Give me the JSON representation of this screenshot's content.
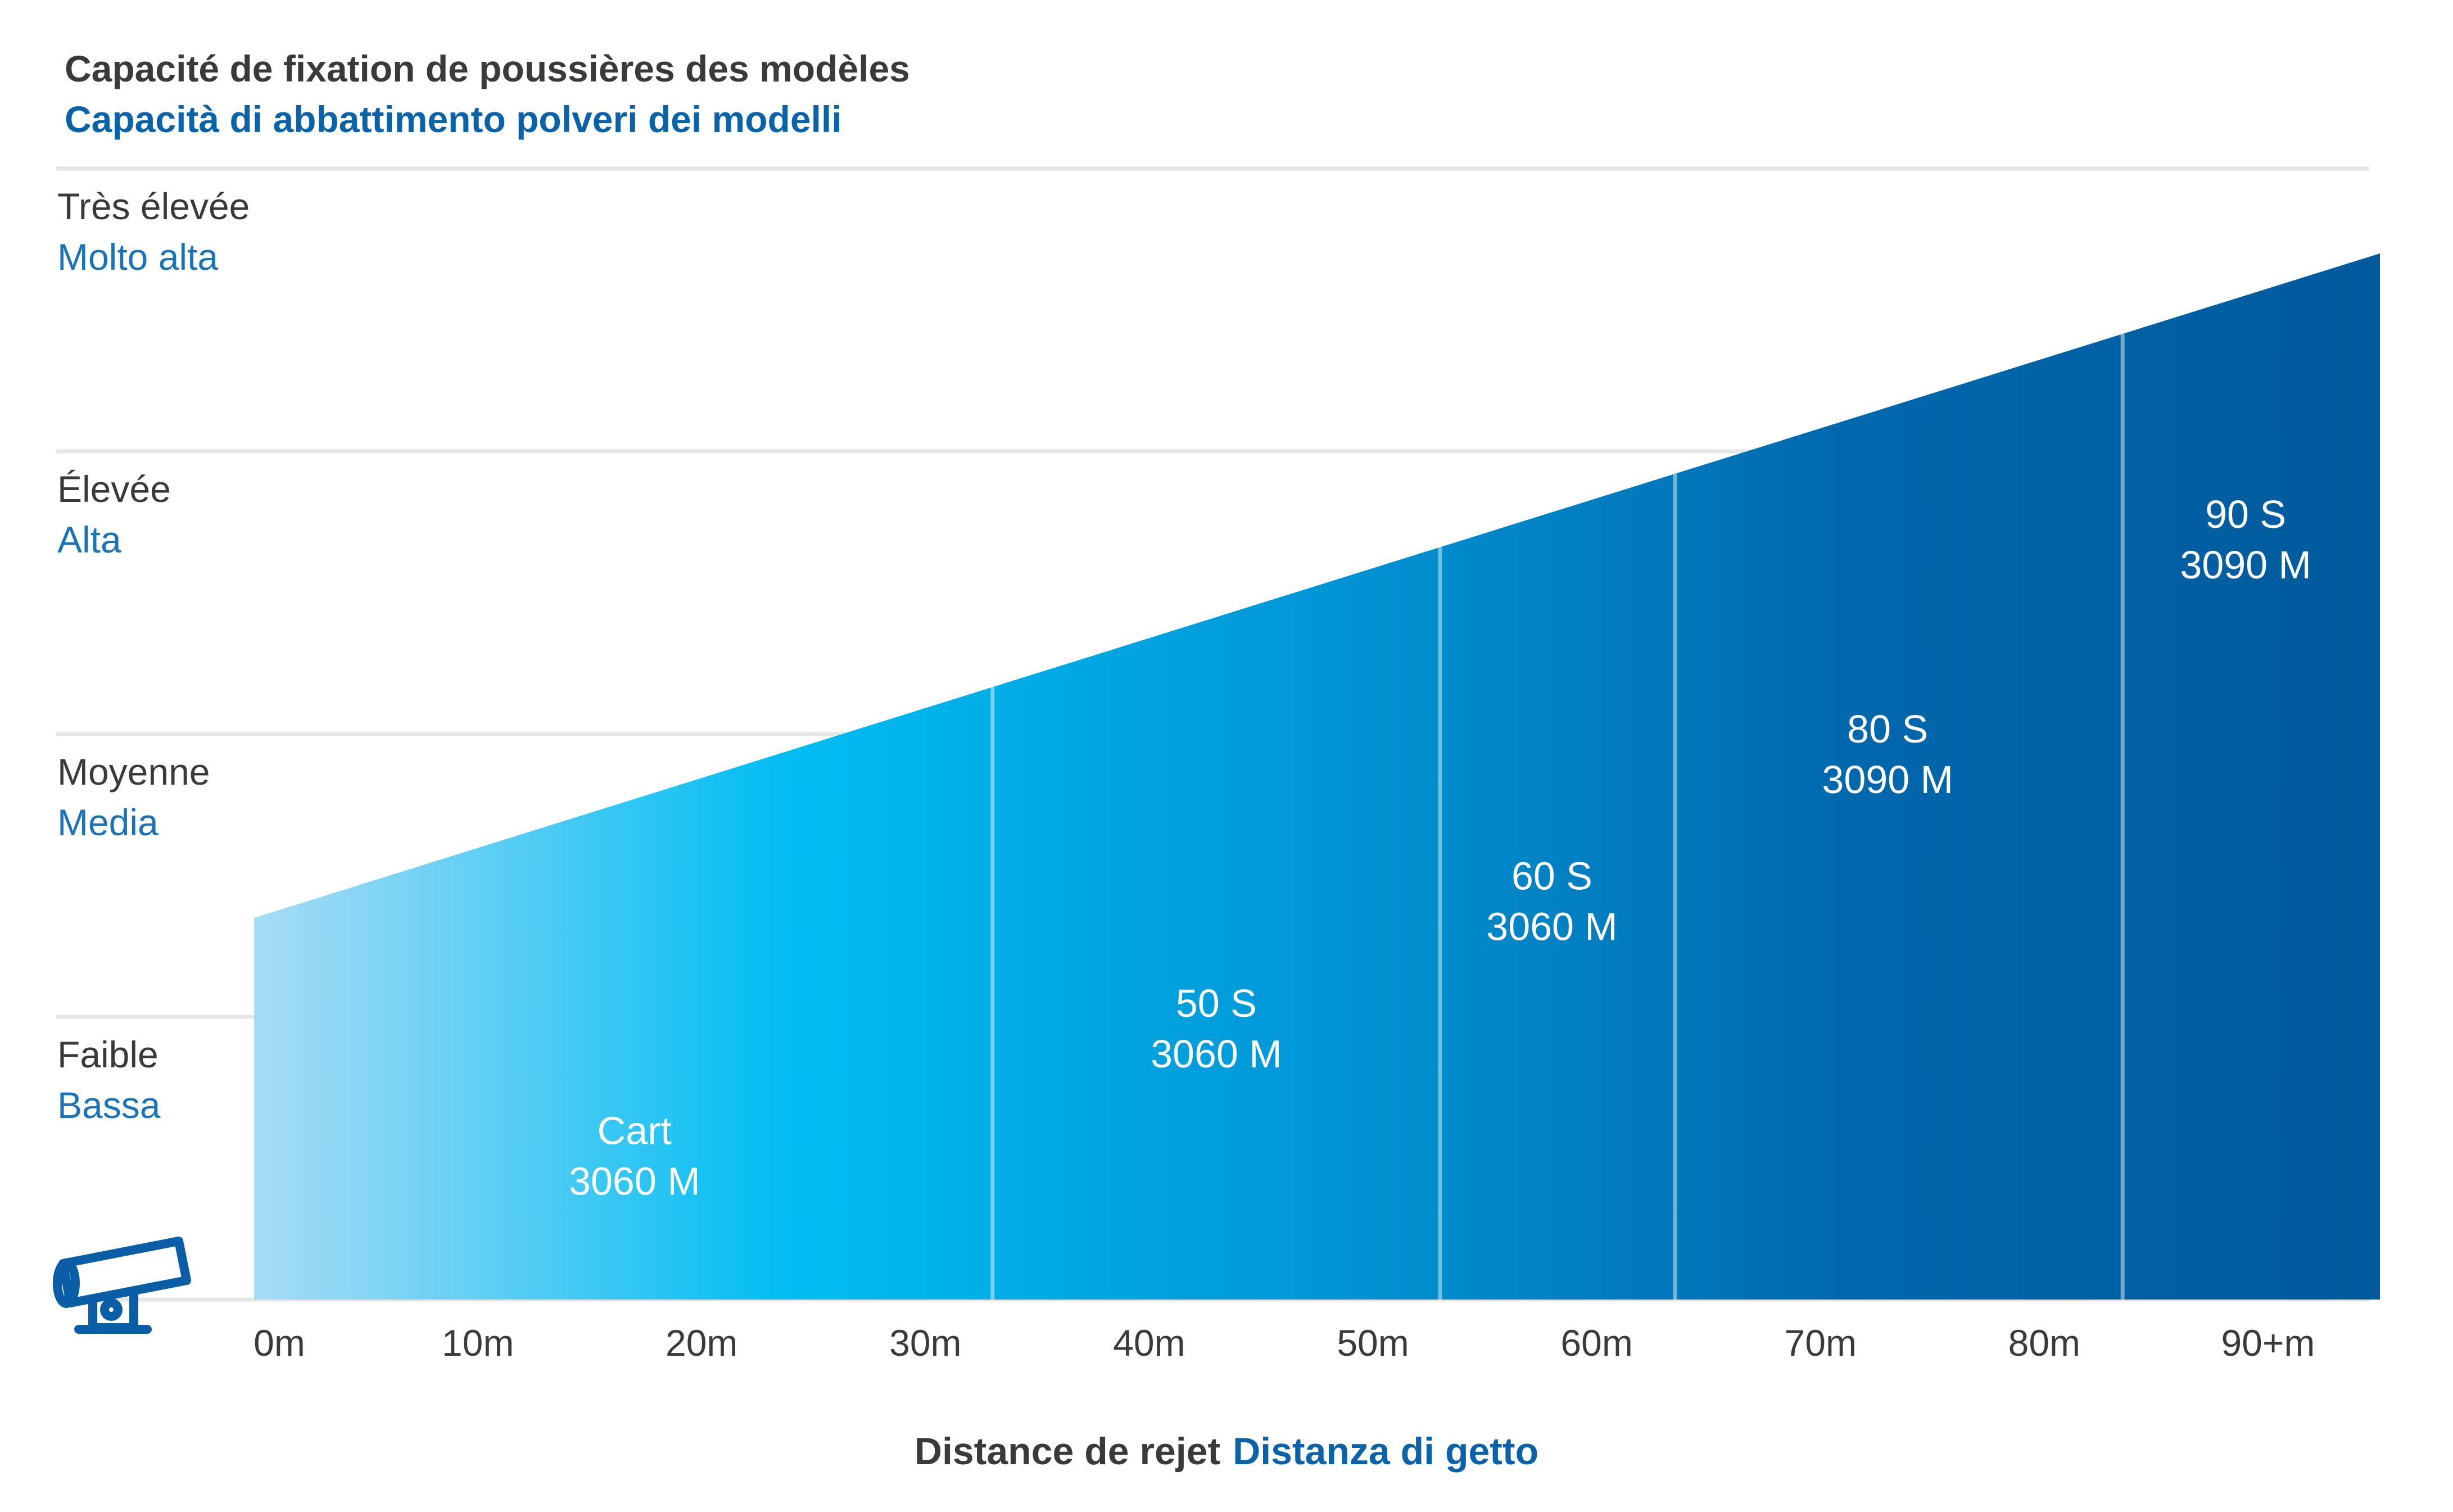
{
  "chart_data": {
    "type": "area",
    "title": "Capacité de fixation de poussières des modèles",
    "subtitle": "Capacità di abbattimento polveri dei modelli",
    "xlabel": {
      "fr": "Distance de rejet",
      "it": "Distanza di getto"
    },
    "x_ticks": [
      "0m",
      "10m",
      "20m",
      "30m",
      "40m",
      "50m",
      "60m",
      "70m",
      "80m",
      "90+m"
    ],
    "y_levels": [
      {
        "fr": "Faible",
        "it": "Bassa"
      },
      {
        "fr": "Moyenne",
        "it": "Media"
      },
      {
        "fr": "Élevée",
        "it": "Alta"
      },
      {
        "fr": "Très élevée",
        "it": "Molto alta"
      }
    ],
    "ylim": [
      0,
      4
    ],
    "xlim": [
      0,
      95
    ],
    "line_start": {
      "x": 0,
      "y": 1.35
    },
    "line_end": {
      "x": 95,
      "y": 3.7
    },
    "segments": [
      {
        "lines": [
          "Cart",
          "3060 M"
        ],
        "from": 0,
        "to": 33,
        "label_x": 17,
        "label_y": 0.55
      },
      {
        "lines": [
          "50 S",
          "3060 M"
        ],
        "from": 33,
        "to": 53,
        "label_x": 43,
        "label_y": 1.0
      },
      {
        "lines": [
          "60 S",
          "3060 M"
        ],
        "from": 53,
        "to": 63.5,
        "label_x": 58,
        "label_y": 1.45
      },
      {
        "lines": [
          "80 S",
          "3090 M"
        ],
        "from": 63.5,
        "to": 83.5,
        "label_x": 73,
        "label_y": 1.97
      },
      {
        "lines": [
          "90 S",
          "3090 M"
        ],
        "from": 83.5,
        "to": 95,
        "label_x": 89,
        "label_y": 2.73
      }
    ],
    "gradient_colors": [
      "#a8dcf5",
      "#00bdf2",
      "#0096d6",
      "#0068ad",
      "#005a9c"
    ],
    "grid": true
  }
}
